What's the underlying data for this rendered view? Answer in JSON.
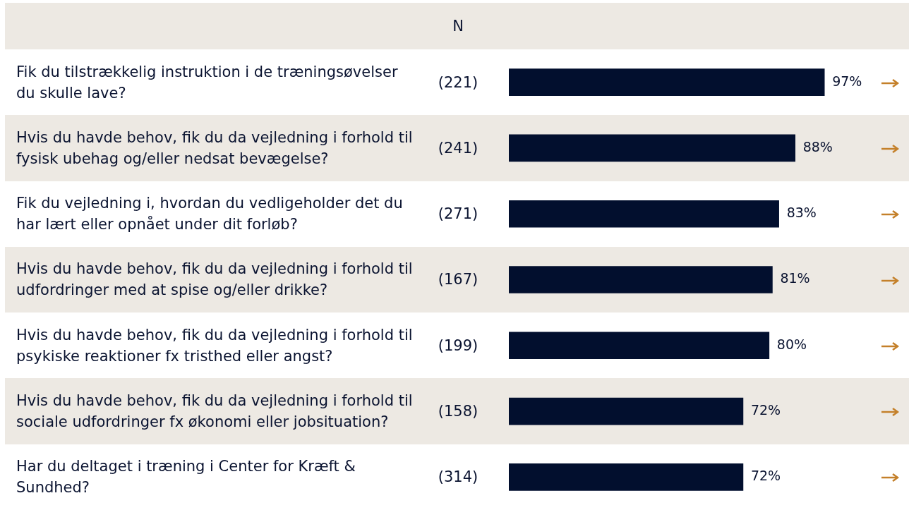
{
  "chart_data": {
    "type": "bar",
    "orientation": "horizontal",
    "categories": [
      "Fik du tilstrækkelig instruktion i de træningsøvelser du skulle lave?",
      "Hvis du havde behov, fik du da vejledning i forhold til fysisk ubehag og/eller nedsat bevægelse?",
      "Fik du vejledning i, hvordan du vedligeholder det du har lært eller opnået under dit forløb?",
      "Hvis du havde behov, fik du da vejledning i forhold til udfordringer med at spise og/eller drikke?",
      "Hvis du havde behov, fik du da vejledning i forhold til psykiske reaktioner fx tristhed eller angst?",
      "Hvis du havde behov, fik du da vejledning i forhold til sociale udfordringer fx økonomi eller jobsituation?",
      "Har du deltaget i træning i Center for Kræft & Sundhed?"
    ],
    "values": [
      97,
      88,
      83,
      81,
      80,
      72,
      72
    ],
    "value_labels": [
      "97%",
      "88%",
      "83%",
      "81%",
      "80%",
      "72%",
      "72%"
    ],
    "color": "#020f2e",
    "annotations": [
      "N",
      "(221)",
      "(241)",
      "(271)",
      "(167)",
      "(199)",
      "(158)",
      "(314)"
    ]
  }
}
